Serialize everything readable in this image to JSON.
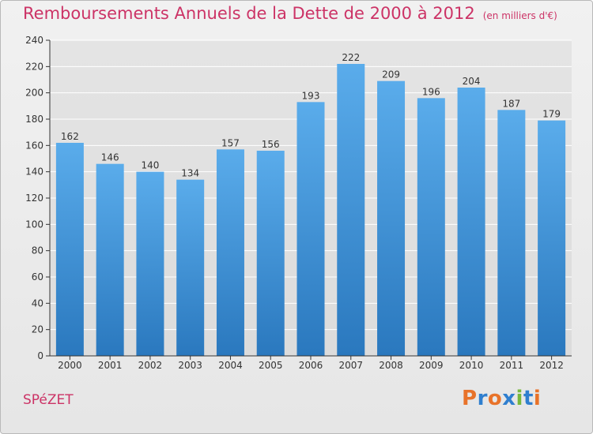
{
  "title": "Remboursements Annuels de la Dette de 2000 à 2012",
  "unit_note": "(en milliers d'€)",
  "commune": "SPéZET",
  "logo": {
    "text": "Proxiti",
    "colors": [
      "#e8732a",
      "#2f7fcf",
      "#e8732a",
      "#2f7fcf",
      "#78b83c",
      "#2f7fcf",
      "#e8732a"
    ]
  },
  "colors": {
    "title": "#cc3366",
    "bar_top": "#5aaceb",
    "bar_bottom": "#2a78be",
    "axis": "#333333",
    "grid": "#ffffff"
  },
  "chart_data": {
    "type": "bar",
    "title": "Remboursements Annuels de la Dette de 2000 à 2012",
    "categories": [
      "2000",
      "2001",
      "2002",
      "2003",
      "2004",
      "2005",
      "2006",
      "2007",
      "2008",
      "2009",
      "2010",
      "2011",
      "2012"
    ],
    "values": [
      162,
      146,
      140,
      134,
      157,
      156,
      193,
      222,
      209,
      196,
      204,
      187,
      179
    ],
    "ylim": [
      0,
      240
    ],
    "yticks": [
      0,
      20,
      40,
      60,
      80,
      100,
      120,
      140,
      160,
      180,
      200,
      220,
      240
    ],
    "grid": true
  }
}
